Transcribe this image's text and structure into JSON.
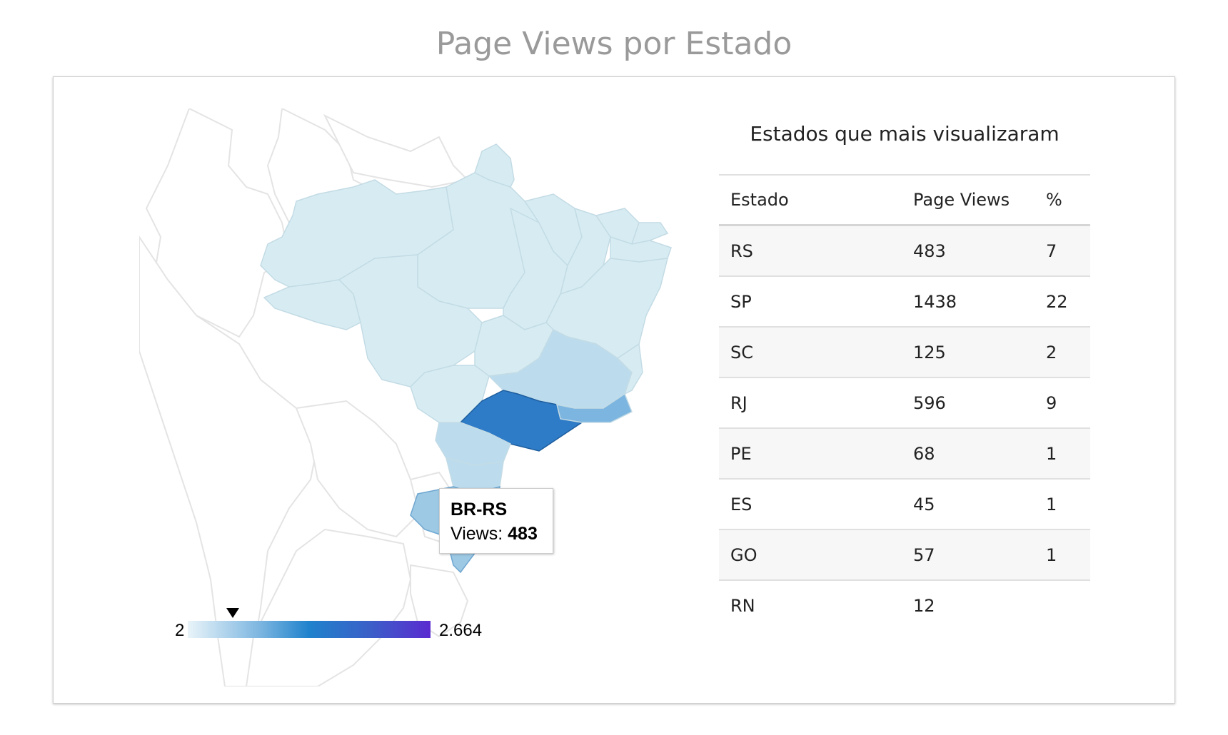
{
  "title": "Page Views por Estado",
  "map": {
    "tooltip": {
      "region": "BR-RS",
      "label": "Views:",
      "value": "483"
    },
    "legend": {
      "min": "2",
      "max": "2.664"
    },
    "colors": {
      "low": "#d7ecf2",
      "sp": "#2e7bc7",
      "rj": "#7cb5e0",
      "rs": "#9dc9e5",
      "mg": "#bcdcee",
      "border": "#e4e4e4"
    }
  },
  "table": {
    "title": "Estados que mais visualizaram",
    "headers": [
      "Estado",
      "Page Views",
      "%"
    ],
    "rows": [
      {
        "estado": "RS",
        "views": "483",
        "pct": "7"
      },
      {
        "estado": "SP",
        "views": "1438",
        "pct": "22"
      },
      {
        "estado": "SC",
        "views": "125",
        "pct": "2"
      },
      {
        "estado": "RJ",
        "views": "596",
        "pct": "9"
      },
      {
        "estado": "PE",
        "views": "68",
        "pct": "1"
      },
      {
        "estado": "ES",
        "views": "45",
        "pct": "1"
      },
      {
        "estado": "GO",
        "views": "57",
        "pct": "1"
      },
      {
        "estado": "RN",
        "views": "12",
        "pct": ""
      }
    ]
  }
}
